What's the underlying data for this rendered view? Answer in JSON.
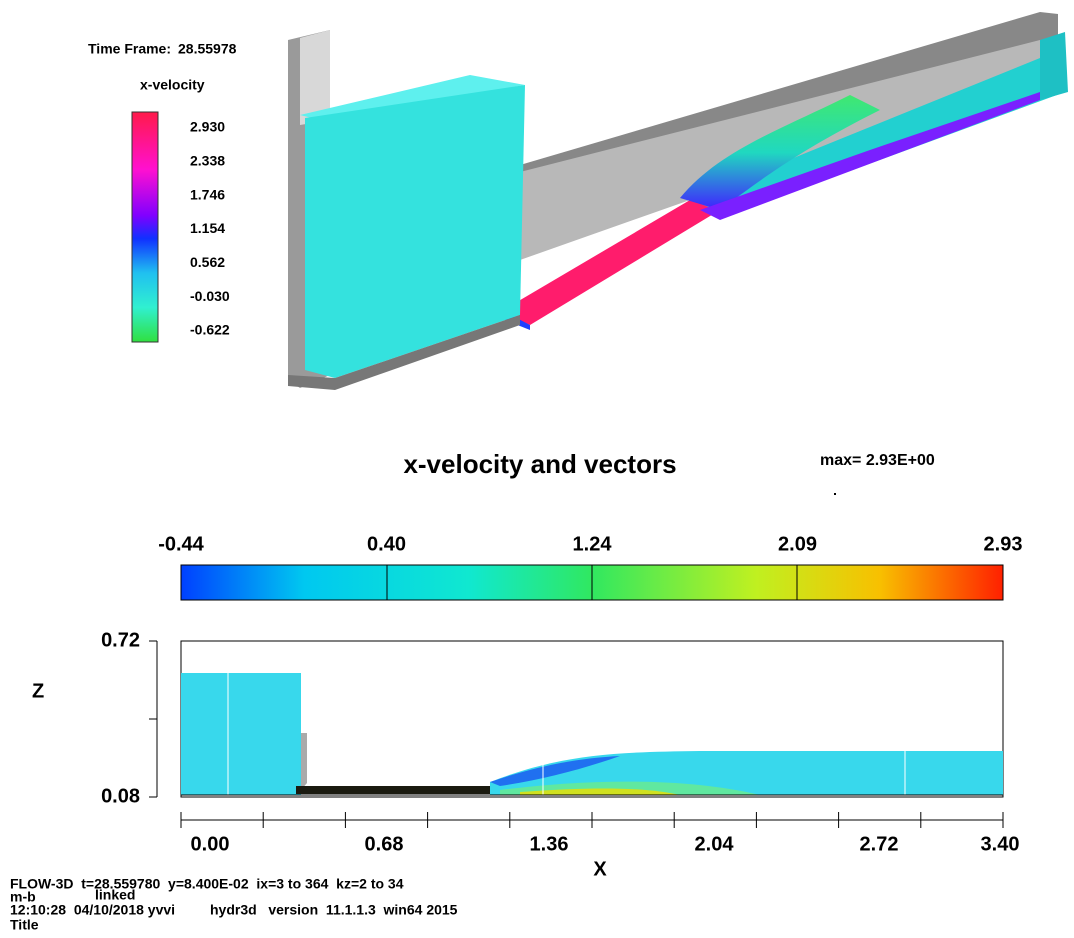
{
  "legend_3d": {
    "time_frame_label": "Time Frame:",
    "time_frame": "28.55978",
    "variable": "x-velocity",
    "levels": [
      "2.930",
      "2.338",
      "1.746",
      "1.154",
      "0.562",
      "-0.030",
      "-0.622"
    ]
  },
  "plot_2d": {
    "title": "x-velocity and vectors",
    "max": "max= 2.93E+00",
    "colorbar_labels": [
      "-0.44",
      "0.40",
      "1.24",
      "2.09",
      "2.93"
    ],
    "z_axis": {
      "label": "Z",
      "ticks": [
        "0.72",
        "0.08"
      ]
    },
    "x_axis": {
      "label": "X",
      "ticks": [
        "0.00",
        "0.68",
        "1.36",
        "2.04",
        "2.72",
        "3.40"
      ]
    }
  },
  "footer": {
    "run": "FLOW-3D  t=28.559780  y=8.400E-02  ix=3 to 364  kz=2 to 34",
    "case": "m-b",
    "linked": "linked",
    "stamp": "12:10:28  04/10/2018 yvvi",
    "version": "hydr3d   version  11.1.1.3  win64 2015",
    "title": "Title"
  }
}
